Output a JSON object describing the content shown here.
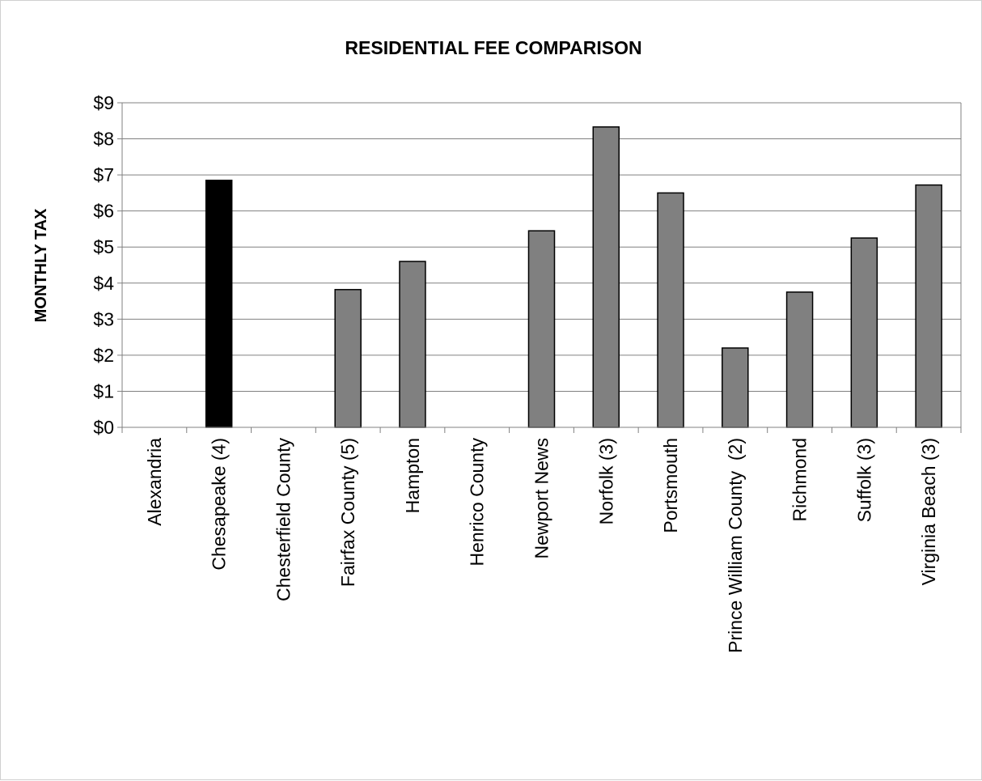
{
  "chart_data": {
    "type": "bar",
    "title": "RESIDENTIAL FEE COMPARISON",
    "xlabel": "",
    "ylabel": "MONTHLY TAX",
    "ylim": [
      0,
      9
    ],
    "yticks": [
      "$0",
      "$1",
      "$2",
      "$3",
      "$4",
      "$5",
      "$6",
      "$7",
      "$8",
      "$9"
    ],
    "grid": true,
    "legend": "none",
    "categories": [
      "Alexandria",
      "Chesapeake (4)",
      "Chesterfield County",
      "Fairfax County (5)",
      "Hampton",
      "Henrico County",
      "Newport News",
      "Norfolk (3)",
      "Portsmouth",
      "Prince William County  (2)",
      "Richmond",
      "Suffolk (3)",
      "Virginia Beach (3)"
    ],
    "values": [
      0,
      6.85,
      0,
      3.82,
      4.6,
      0,
      5.45,
      8.33,
      6.5,
      2.2,
      3.75,
      5.25,
      6.72
    ],
    "highlight_index": 1,
    "colors": {
      "bar": "#808080",
      "highlight": "#000000",
      "grid": "#808080",
      "axis": "#808080"
    }
  }
}
